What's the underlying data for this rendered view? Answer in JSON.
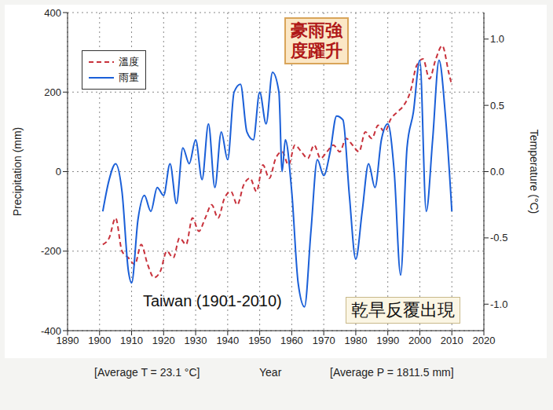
{
  "chart_data": {
    "type": "line",
    "x_label": "Year",
    "y_label": "Precipitation (mm)",
    "y2_label": "Temperature (°C)",
    "annotations": [
      "豪雨強度躍升",
      "乾旱反覆出現",
      "Taiwan (1901-2010)",
      "[Average T = 23.1 °C]",
      "[Average P = 1811.5 mm]"
    ],
    "xlim": [
      1890,
      2020
    ],
    "xticks": [
      1890,
      1900,
      1910,
      1920,
      1930,
      1940,
      1950,
      1960,
      1970,
      1980,
      1990,
      2000,
      2010,
      2020
    ],
    "ylim": [
      -400,
      400
    ],
    "yticks": [
      -400,
      -200,
      0,
      200,
      400
    ],
    "y2lim": [
      -1.2,
      1.2
    ],
    "y2ticks": [
      {
        "value": -1,
        "label": "-1.0"
      },
      {
        "value": -0.5,
        "label": "-0.5"
      },
      {
        "value": 0,
        "label": "0.0"
      },
      {
        "value": 0.5,
        "label": "0.5"
      },
      {
        "value": 1,
        "label": "1.0"
      }
    ],
    "grid": true,
    "legend": "upper left",
    "series": [
      {
        "name": "溫度",
        "color": "#c8323c",
        "line_style": "dashed",
        "axis": "y2",
        "x": [
          1901,
          1903,
          1905,
          1907,
          1909,
          1911,
          1913,
          1915,
          1917,
          1919,
          1921,
          1923,
          1925,
          1927,
          1929,
          1931,
          1933,
          1935,
          1937,
          1939,
          1941,
          1943,
          1945,
          1947,
          1949,
          1951,
          1953,
          1955,
          1957,
          1959,
          1961,
          1963,
          1965,
          1967,
          1969,
          1971,
          1973,
          1975,
          1977,
          1979,
          1981,
          1983,
          1985,
          1987,
          1989,
          1991,
          1993,
          1995,
          1997,
          1999,
          2001,
          2003,
          2005,
          2007,
          2009,
          2010
        ],
        "values": [
          -0.55,
          -0.5,
          -0.35,
          -0.6,
          -0.65,
          -0.7,
          -0.55,
          -0.7,
          -0.8,
          -0.75,
          -0.6,
          -0.65,
          -0.5,
          -0.55,
          -0.35,
          -0.45,
          -0.35,
          -0.25,
          -0.35,
          -0.2,
          -0.15,
          -0.25,
          -0.1,
          -0.05,
          -0.15,
          0.05,
          -0.05,
          0.1,
          0.15,
          0.05,
          0.2,
          0.15,
          0.1,
          0.2,
          0.1,
          0.15,
          0.2,
          0.15,
          0.25,
          0.2,
          0.15,
          0.3,
          0.25,
          0.35,
          0.3,
          0.4,
          0.45,
          0.5,
          0.6,
          0.8,
          0.85,
          0.7,
          0.85,
          0.95,
          0.75,
          0.65
        ]
      },
      {
        "name": "雨量",
        "color": "#1a5fd8",
        "line_style": "solid",
        "x": [
          1901,
          1903,
          1905,
          1907,
          1909,
          1910,
          1912,
          1914,
          1916,
          1918,
          1920,
          1922,
          1924,
          1926,
          1928,
          1930,
          1932,
          1934,
          1936,
          1938,
          1940,
          1942,
          1944,
          1946,
          1948,
          1950,
          1952,
          1954,
          1956,
          1957,
          1958,
          1960,
          1962,
          1964,
          1966,
          1968,
          1970,
          1972,
          1974,
          1976,
          1978,
          1980,
          1982,
          1984,
          1986,
          1988,
          1990,
          1992,
          1994,
          1996,
          1998,
          2000,
          2002,
          2004,
          2006,
          2008,
          2010
        ],
        "values": [
          -100,
          -20,
          20,
          -50,
          -250,
          -280,
          -120,
          -60,
          -100,
          -40,
          -60,
          20,
          -80,
          60,
          20,
          80,
          -20,
          120,
          -40,
          100,
          30,
          200,
          220,
          100,
          80,
          200,
          120,
          250,
          200,
          0,
          80,
          -50,
          -280,
          -340,
          -150,
          30,
          -10,
          50,
          140,
          130,
          -60,
          -220,
          -100,
          20,
          -40,
          80,
          120,
          0,
          -260,
          60,
          150,
          280,
          -100,
          80,
          280,
          140,
          -100
        ]
      }
    ]
  }
}
